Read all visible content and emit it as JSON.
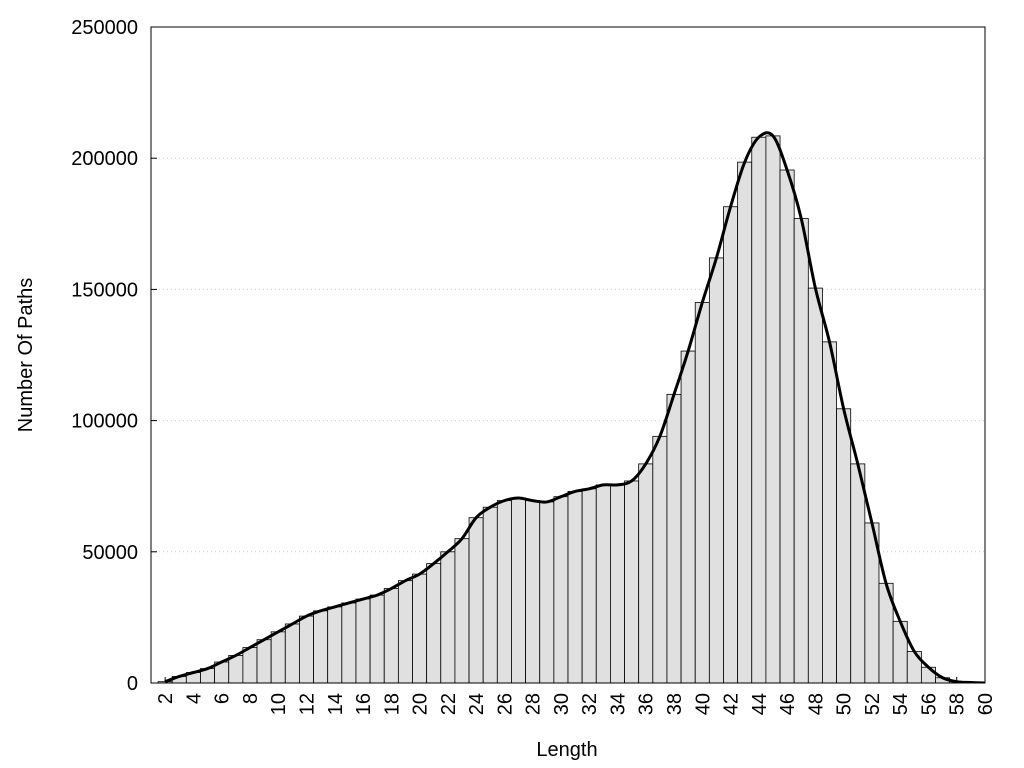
{
  "chart_data": {
    "type": "bar",
    "x_label": "Length",
    "y_label": "Number Of Paths",
    "x": [
      2,
      3,
      4,
      5,
      6,
      7,
      8,
      9,
      10,
      11,
      12,
      13,
      14,
      15,
      16,
      17,
      18,
      19,
      20,
      21,
      22,
      23,
      24,
      25,
      26,
      27,
      28,
      29,
      30,
      31,
      32,
      33,
      34,
      35,
      36,
      37,
      38,
      39,
      40,
      41,
      42,
      43,
      44,
      45,
      46,
      47,
      48,
      49,
      50,
      51,
      52,
      53,
      54,
      55,
      56,
      57,
      58,
      59,
      60
    ],
    "values": [
      500,
      2500,
      4000,
      5500,
      8000,
      10500,
      13500,
      16500,
      19500,
      22500,
      25500,
      27500,
      29000,
      30500,
      32000,
      33500,
      36000,
      39000,
      41500,
      45500,
      50000,
      55000,
      63000,
      67000,
      69500,
      70500,
      69500,
      69000,
      71000,
      73000,
      74000,
      75500,
      75500,
      77000,
      83500,
      94000,
      110000,
      126500,
      145000,
      162000,
      181500,
      198500,
      208000,
      208500,
      195500,
      177000,
      150500,
      130000,
      104500,
      83500,
      61000,
      38000,
      23500,
      12000,
      6000,
      2000,
      500,
      200,
      0
    ],
    "color": "#e0e0e0",
    "smooth_line": true,
    "line_color": "#000000",
    "xlim": [
      1,
      60
    ],
    "xticks": [
      2,
      4,
      6,
      8,
      10,
      12,
      14,
      16,
      18,
      20,
      22,
      24,
      26,
      28,
      30,
      32,
      34,
      36,
      38,
      40,
      42,
      44,
      46,
      48,
      50,
      52,
      54,
      56,
      58,
      60
    ],
    "ylim": [
      0,
      250000
    ],
    "yticks": [
      0,
      50000,
      100000,
      150000,
      200000,
      250000
    ],
    "grid": true
  }
}
